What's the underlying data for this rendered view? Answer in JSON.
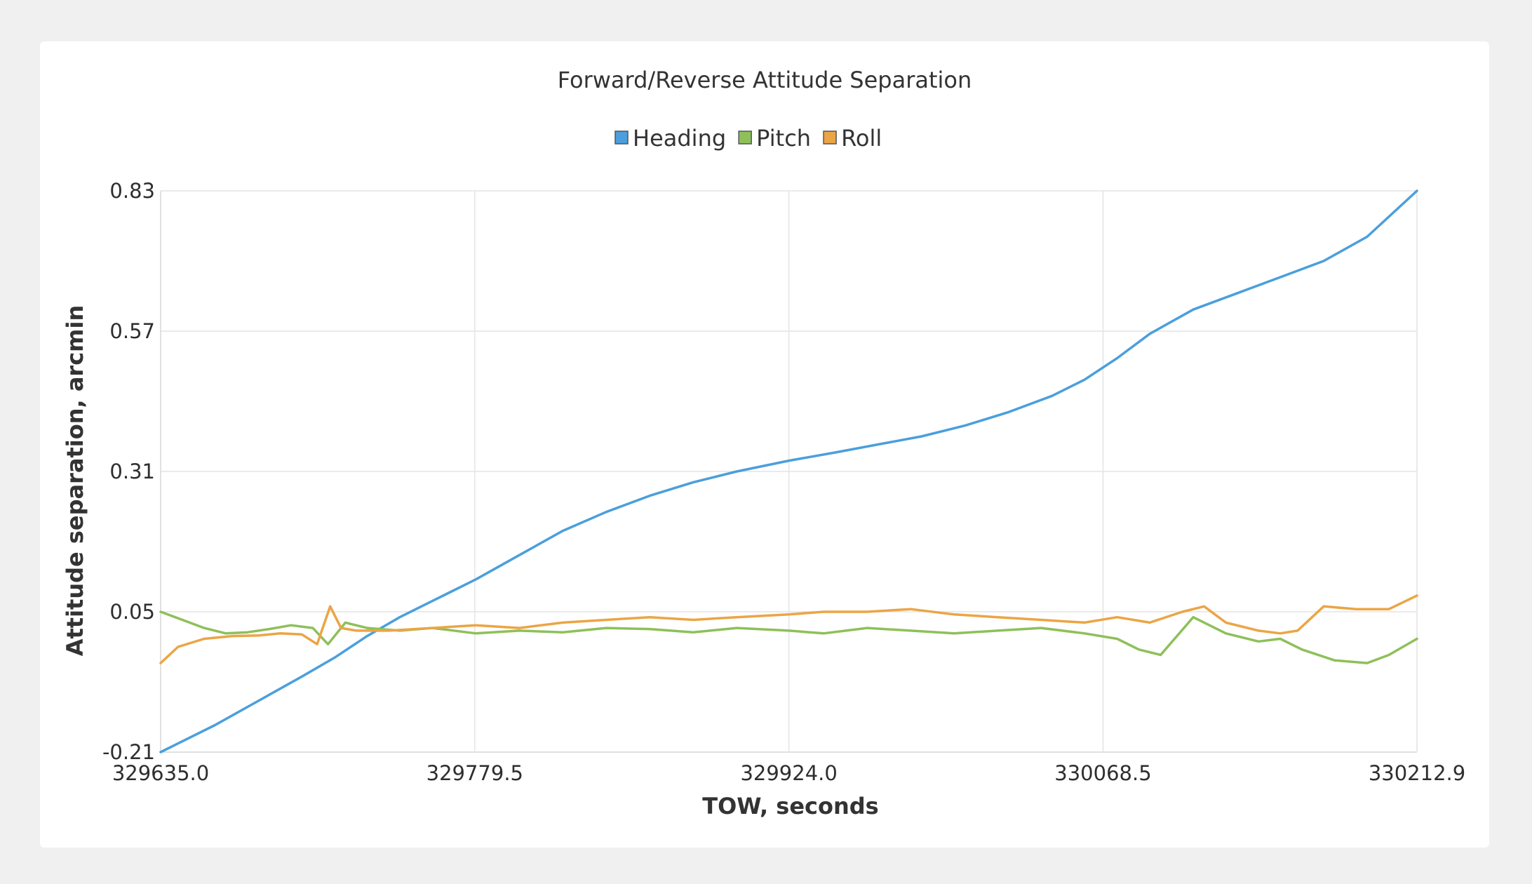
{
  "chart_data": {
    "type": "line",
    "title": "Forward/Reverse Attitude Separation",
    "xlabel": "TOW, seconds",
    "ylabel": "Attitude separation, arcmin",
    "xlim": [
      329635.0,
      330212.9
    ],
    "ylim": [
      -0.21,
      0.83
    ],
    "x_ticks": [
      "329635.0",
      "329779.5",
      "329924.0",
      "330068.5",
      "330212.9"
    ],
    "y_ticks": [
      "-0.21",
      "0.05",
      "0.31",
      "0.57",
      "0.83"
    ],
    "grid": true,
    "legend_position": "top-center",
    "series": [
      {
        "name": "Heading",
        "color": "#4a9fdc",
        "x": [
          329635,
          329660,
          329680,
          329700,
          329715,
          329730,
          329745,
          329760,
          329780,
          329800,
          329820,
          329840,
          329860,
          329880,
          329900,
          329924,
          329945,
          329965,
          329985,
          330005,
          330025,
          330045,
          330060,
          330075,
          330090,
          330110,
          330130,
          330150,
          330170,
          330190,
          330212.9
        ],
        "y": [
          -0.21,
          -0.16,
          -0.115,
          -0.07,
          -0.035,
          0.005,
          0.04,
          0.07,
          0.11,
          0.155,
          0.2,
          0.235,
          0.265,
          0.29,
          0.31,
          0.33,
          0.345,
          0.36,
          0.375,
          0.395,
          0.42,
          0.45,
          0.48,
          0.52,
          0.565,
          0.61,
          0.64,
          0.67,
          0.7,
          0.745,
          0.83
        ]
      },
      {
        "name": "Pitch",
        "color": "#8ec05a",
        "x": [
          329635,
          329645,
          329655,
          329665,
          329675,
          329685,
          329695,
          329705,
          329712,
          329720,
          329730,
          329745,
          329760,
          329780,
          329800,
          329820,
          329840,
          329860,
          329880,
          329900,
          329924,
          329940,
          329960,
          329980,
          330000,
          330020,
          330040,
          330060,
          330075,
          330085,
          330095,
          330110,
          330125,
          330140,
          330150,
          330160,
          330175,
          330190,
          330200,
          330212.9
        ],
        "y": [
          0.05,
          0.035,
          0.02,
          0.01,
          0.012,
          0.018,
          0.025,
          0.02,
          -0.01,
          0.03,
          0.02,
          0.015,
          0.02,
          0.01,
          0.015,
          0.012,
          0.02,
          0.018,
          0.012,
          0.02,
          0.015,
          0.01,
          0.02,
          0.015,
          0.01,
          0.015,
          0.02,
          0.01,
          0.0,
          -0.02,
          -0.03,
          0.04,
          0.01,
          -0.005,
          0.0,
          -0.02,
          -0.04,
          -0.045,
          -0.03,
          0.0
        ]
      },
      {
        "name": "Roll",
        "color": "#eba545",
        "x": [
          329635,
          329643,
          329655,
          329668,
          329680,
          329690,
          329700,
          329707,
          329713,
          329718,
          329725,
          329740,
          329760,
          329780,
          329800,
          329820,
          329840,
          329860,
          329880,
          329900,
          329924,
          329940,
          329960,
          329980,
          330000,
          330020,
          330040,
          330060,
          330075,
          330090,
          330105,
          330115,
          330125,
          330140,
          330150,
          330158,
          330170,
          330185,
          330200,
          330212.9
        ],
        "y": [
          -0.045,
          -0.015,
          0.0,
          0.005,
          0.006,
          0.01,
          0.008,
          -0.01,
          0.06,
          0.02,
          0.015,
          0.015,
          0.02,
          0.025,
          0.02,
          0.03,
          0.035,
          0.04,
          0.035,
          0.04,
          0.045,
          0.05,
          0.05,
          0.055,
          0.045,
          0.04,
          0.035,
          0.03,
          0.04,
          0.03,
          0.05,
          0.06,
          0.03,
          0.015,
          0.01,
          0.015,
          0.06,
          0.055,
          0.055,
          0.08
        ]
      }
    ]
  }
}
